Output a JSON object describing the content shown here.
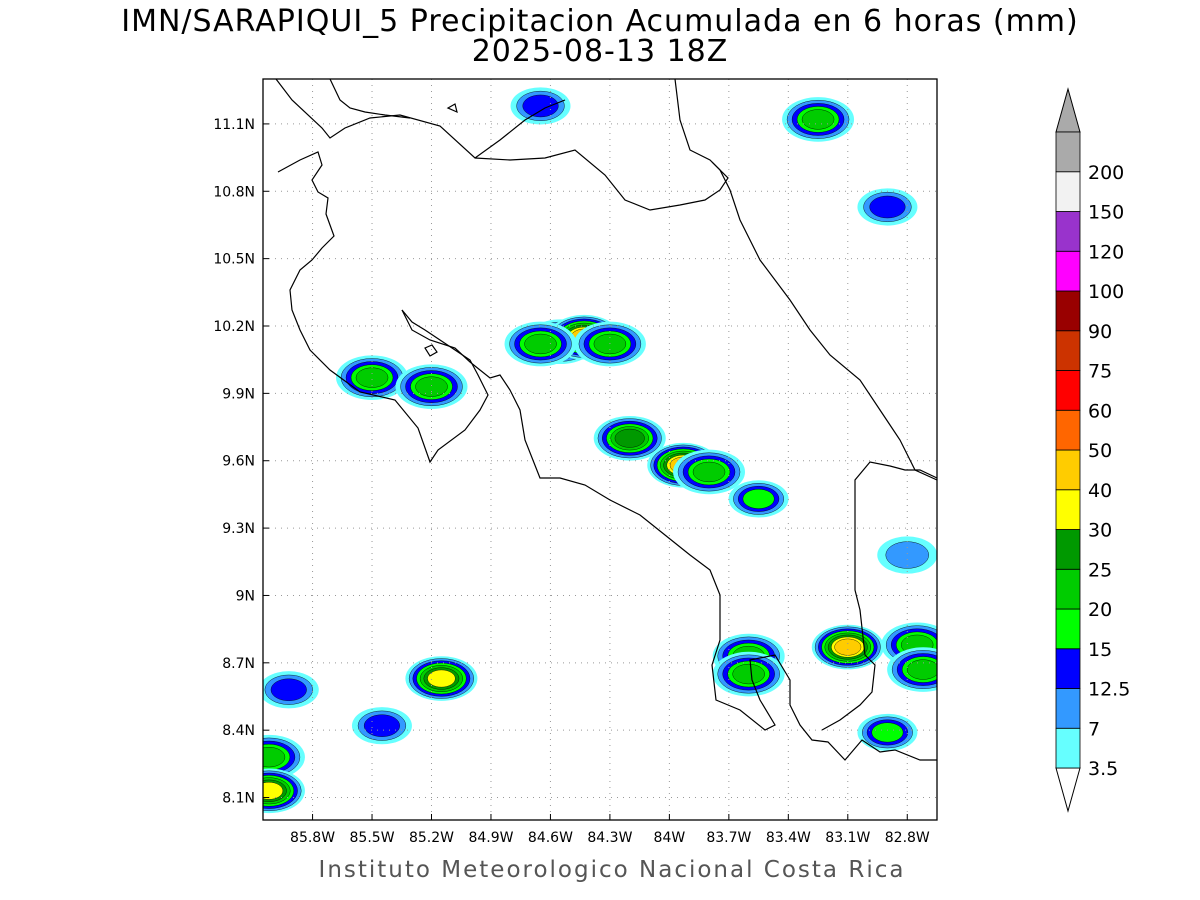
{
  "title": {
    "line1": "IMN/SARAPIQUI_5 Precipitacion Acumulada en 6 horas (mm)",
    "line2": "2025-08-13 18Z"
  },
  "footer": "Instituto Meteorologico Nacional Costa Rica",
  "map": {
    "lon_range": [
      -86.05,
      -82.65
    ],
    "lat_range": [
      8.0,
      11.3
    ],
    "lon_ticks": [
      {
        "value": -85.8,
        "label": "85.8W"
      },
      {
        "value": -85.5,
        "label": "85.5W"
      },
      {
        "value": -85.2,
        "label": "85.2W"
      },
      {
        "value": -84.9,
        "label": "84.9W"
      },
      {
        "value": -84.6,
        "label": "84.6W"
      },
      {
        "value": -84.3,
        "label": "84.3W"
      },
      {
        "value": -84.0,
        "label": "84W"
      },
      {
        "value": -83.7,
        "label": "83.7W"
      },
      {
        "value": -83.4,
        "label": "83.4W"
      },
      {
        "value": -83.1,
        "label": "83.1W"
      },
      {
        "value": -82.8,
        "label": "82.8W"
      }
    ],
    "lat_ticks": [
      {
        "value": 8.1,
        "label": "8.1N"
      },
      {
        "value": 8.4,
        "label": "8.4N"
      },
      {
        "value": 8.7,
        "label": "8.7N"
      },
      {
        "value": 9.0,
        "label": "9N"
      },
      {
        "value": 9.3,
        "label": "9.3N"
      },
      {
        "value": 9.6,
        "label": "9.6N"
      },
      {
        "value": 9.9,
        "label": "9.9N"
      },
      {
        "value": 10.2,
        "label": "10.2N"
      },
      {
        "value": 10.5,
        "label": "10.5N"
      },
      {
        "value": 10.8,
        "label": "10.8N"
      },
      {
        "value": 11.1,
        "label": "11.1N"
      }
    ],
    "grid": true
  },
  "colorbar": {
    "levels": [
      {
        "label": "3.5",
        "color": "#66ffff"
      },
      {
        "label": "7",
        "color": "#3399ff"
      },
      {
        "label": "12.5",
        "color": "#0000ff"
      },
      {
        "label": "15",
        "color": "#00ff00"
      },
      {
        "label": "20",
        "color": "#00cc00"
      },
      {
        "label": "25",
        "color": "#009900"
      },
      {
        "label": "30",
        "color": "#ffff00"
      },
      {
        "label": "40",
        "color": "#ffcc00"
      },
      {
        "label": "50",
        "color": "#ff6600"
      },
      {
        "label": "60",
        "color": "#ff0000"
      },
      {
        "label": "75",
        "color": "#cc3300"
      },
      {
        "label": "90",
        "color": "#990000"
      },
      {
        "label": "100",
        "color": "#ff00ff"
      },
      {
        "label": "120",
        "color": "#9933cc"
      },
      {
        "label": "150",
        "color": "#f2f2f2"
      },
      {
        "label": "200",
        "color": "#aaaaaa"
      }
    ],
    "low_end_color": "#ffffff",
    "high_end_color": "#aaaaaa"
  },
  "precip_cells": [
    {
      "lon": -84.55,
      "lat": 10.13,
      "max": 25
    },
    {
      "lon": -84.43,
      "lat": 10.15,
      "max": 40
    },
    {
      "lon": -84.3,
      "lat": 10.12,
      "max": 20
    },
    {
      "lon": -84.65,
      "lat": 10.12,
      "max": 20
    },
    {
      "lon": -85.5,
      "lat": 9.97,
      "max": 20
    },
    {
      "lon": -85.2,
      "lat": 9.93,
      "max": 20
    },
    {
      "lon": -84.2,
      "lat": 9.7,
      "max": 25
    },
    {
      "lon": -83.93,
      "lat": 9.58,
      "max": 40
    },
    {
      "lon": -83.8,
      "lat": 9.55,
      "max": 20
    },
    {
      "lon": -83.55,
      "lat": 9.43,
      "max": 15
    },
    {
      "lon": -83.25,
      "lat": 11.12,
      "max": 20
    },
    {
      "lon": -84.65,
      "lat": 11.18,
      "max": 12.5
    },
    {
      "lon": -82.9,
      "lat": 10.73,
      "max": 12.5
    },
    {
      "lon": -85.15,
      "lat": 8.63,
      "max": 30
    },
    {
      "lon": -85.45,
      "lat": 8.42,
      "max": 12.5
    },
    {
      "lon": -85.92,
      "lat": 8.58,
      "max": 12.5
    },
    {
      "lon": -86.02,
      "lat": 8.28,
      "max": 20
    },
    {
      "lon": -86.02,
      "lat": 8.13,
      "max": 30
    },
    {
      "lon": -83.6,
      "lat": 8.73,
      "max": 20
    },
    {
      "lon": -83.6,
      "lat": 8.65,
      "max": 20
    },
    {
      "lon": -83.1,
      "lat": 8.77,
      "max": 40
    },
    {
      "lon": -82.75,
      "lat": 8.78,
      "max": 20
    },
    {
      "lon": -82.72,
      "lat": 8.67,
      "max": 20
    },
    {
      "lon": -82.9,
      "lat": 8.39,
      "max": 15
    },
    {
      "lon": -82.8,
      "lat": 9.18,
      "max": 7
    }
  ]
}
